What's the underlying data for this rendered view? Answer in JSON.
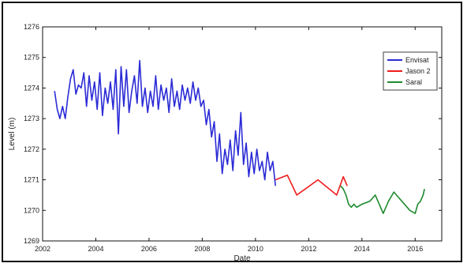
{
  "chart_data": {
    "type": "line",
    "title": "",
    "xlabel": "Date",
    "ylabel": "Level (m)",
    "xlim": [
      2002,
      2017
    ],
    "ylim": [
      1269,
      1276
    ],
    "xticks": [
      2002,
      2004,
      2006,
      2008,
      2010,
      2012,
      2014,
      2016
    ],
    "yticks": [
      1269,
      1270,
      1271,
      1272,
      1273,
      1274,
      1275,
      1276
    ],
    "grid": false,
    "legend_position": "top-right",
    "series": [
      {
        "name": "Envisat",
        "color": "#2b2bd6",
        "x": [
          2002.45,
          2002.55,
          2002.65,
          2002.75,
          2002.85,
          2002.95,
          2003.05,
          2003.15,
          2003.25,
          2003.35,
          2003.45,
          2003.55,
          2003.65,
          2003.75,
          2003.85,
          2003.95,
          2004.05,
          2004.15,
          2004.25,
          2004.35,
          2004.45,
          2004.55,
          2004.65,
          2004.75,
          2004.85,
          2004.95,
          2005.05,
          2005.15,
          2005.25,
          2005.35,
          2005.45,
          2005.55,
          2005.65,
          2005.75,
          2005.85,
          2005.95,
          2006.05,
          2006.15,
          2006.25,
          2006.35,
          2006.45,
          2006.55,
          2006.65,
          2006.75,
          2006.85,
          2006.95,
          2007.05,
          2007.15,
          2007.25,
          2007.35,
          2007.45,
          2007.55,
          2007.65,
          2007.75,
          2007.85,
          2007.95,
          2008.05,
          2008.15,
          2008.25,
          2008.35,
          2008.45,
          2008.55,
          2008.65,
          2008.75,
          2008.85,
          2008.95,
          2009.05,
          2009.15,
          2009.25,
          2009.35,
          2009.45,
          2009.55,
          2009.65,
          2009.75,
          2009.85,
          2009.95,
          2010.05,
          2010.15,
          2010.25,
          2010.35,
          2010.45,
          2010.55,
          2010.65,
          2010.75
        ],
        "y": [
          1273.9,
          1273.3,
          1273.0,
          1273.4,
          1273.0,
          1273.7,
          1274.3,
          1274.6,
          1273.8,
          1274.1,
          1274.0,
          1274.5,
          1273.4,
          1274.4,
          1273.6,
          1274.2,
          1273.3,
          1274.5,
          1273.1,
          1274.0,
          1273.5,
          1274.2,
          1273.3,
          1274.6,
          1272.5,
          1274.7,
          1273.4,
          1274.6,
          1273.2,
          1273.9,
          1274.4,
          1273.5,
          1274.9,
          1273.4,
          1274.0,
          1273.2,
          1273.9,
          1273.4,
          1274.4,
          1273.3,
          1274.1,
          1273.6,
          1274.0,
          1273.2,
          1274.3,
          1273.4,
          1273.9,
          1273.3,
          1274.1,
          1273.6,
          1274.0,
          1273.5,
          1274.2,
          1273.6,
          1274.0,
          1273.4,
          1273.6,
          1272.8,
          1273.3,
          1272.4,
          1272.9,
          1271.6,
          1272.5,
          1271.2,
          1272.0,
          1271.5,
          1272.3,
          1271.3,
          1272.6,
          1271.8,
          1273.2,
          1271.5,
          1272.2,
          1271.1,
          1271.9,
          1271.2,
          1272.0,
          1271.3,
          1271.6,
          1271.0,
          1271.9,
          1271.3,
          1271.6,
          1270.8
        ]
      },
      {
        "name": "Jason 2",
        "color": "#ee1c1c",
        "x": [
          2010.75,
          2011.2,
          2011.55,
          2012.35,
          2013.05,
          2013.3,
          2013.45
        ],
        "y": [
          1271.0,
          1271.15,
          1270.5,
          1271.0,
          1270.5,
          1271.1,
          1270.8
        ]
      },
      {
        "name": "Saral",
        "color": "#1e8a2e",
        "x": [
          2013.2,
          2013.3,
          2013.4,
          2013.5,
          2013.6,
          2013.7,
          2013.8,
          2014.0,
          2014.3,
          2014.5,
          2014.8,
          2015.0,
          2015.2,
          2015.5,
          2015.8,
          2016.0,
          2016.1,
          2016.2,
          2016.3,
          2016.35
        ],
        "y": [
          1270.8,
          1270.7,
          1270.5,
          1270.2,
          1270.1,
          1270.2,
          1270.1,
          1270.2,
          1270.3,
          1270.5,
          1269.9,
          1270.3,
          1270.6,
          1270.3,
          1270.0,
          1269.9,
          1270.2,
          1270.3,
          1270.5,
          1270.7
        ]
      }
    ]
  }
}
